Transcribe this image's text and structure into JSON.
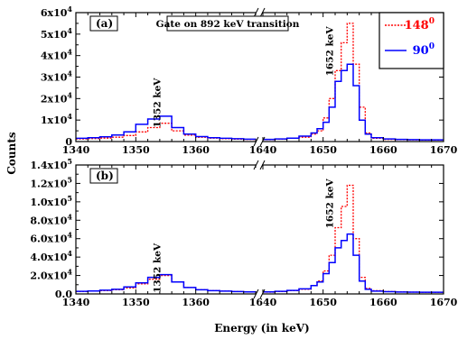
{
  "chart_data": [
    {
      "id": "a",
      "type": "line",
      "panel_label": "(a)",
      "title": "Gate on 892 keV transition",
      "ylabel": "Counts",
      "ylim": [
        0,
        60000
      ],
      "yticks": [
        {
          "value": 0,
          "label": "0"
        },
        {
          "value": 10000,
          "label": "1x10",
          "exp": "4"
        },
        {
          "value": 20000,
          "label": "2x10",
          "exp": "4"
        },
        {
          "value": 30000,
          "label": "3x10",
          "exp": "4"
        },
        {
          "value": 40000,
          "label": "4x10",
          "exp": "4"
        },
        {
          "value": 50000,
          "label": "5x10",
          "exp": "4"
        },
        {
          "value": 60000,
          "label": "6x10",
          "exp": "4"
        }
      ],
      "x_segments": [
        {
          "range": [
            1340,
            1370
          ],
          "ticks": [
            {
              "value": 1340,
              "label": "1340"
            },
            {
              "value": 1350,
              "label": "1350"
            },
            {
              "value": 1360,
              "label": "1360"
            }
          ]
        },
        {
          "range": [
            1640,
            1670
          ],
          "ticks": [
            {
              "value": 1640,
              "label": "1640"
            },
            {
              "value": 1650,
              "label": "1650"
            },
            {
              "value": 1660,
              "label": "1660"
            },
            {
              "value": 1670,
              "label": "1670"
            }
          ]
        }
      ],
      "annotations": [
        {
          "text": "1352 keV",
          "x": 1353.5,
          "y": 18000
        },
        {
          "text": "1652 keV",
          "x": 1651,
          "y": 42000
        }
      ],
      "legend": {
        "placement": "top-right",
        "entries": [
          {
            "name": "148",
            "sup": "0",
            "color": "#ff0000",
            "style": "dotted"
          },
          {
            "name": "90",
            "sup": "0",
            "color": "#0000ff",
            "style": "solid"
          }
        ]
      },
      "series": [
        {
          "name": "148",
          "color": "#ff0000",
          "style": "dotted",
          "segments": [
            {
              "x": [
                1340,
                1342,
                1344,
                1346,
                1348,
                1350,
                1352,
                1354,
                1356,
                1358,
                1360,
                1362,
                1364,
                1366,
                1368,
                1370
              ],
              "values": [
                1200,
                1400,
                1600,
                2000,
                2800,
                4500,
                6500,
                8500,
                5000,
                3000,
                2000,
                1600,
                1300,
                1100,
                1000,
                900
              ]
            },
            {
              "x": [
                1640,
                1642,
                1644,
                1646,
                1648,
                1649,
                1650,
                1651,
                1652,
                1653,
                1654,
                1655,
                1656,
                1657,
                1658,
                1660,
                1662,
                1664,
                1666,
                1668,
                1670
              ],
              "values": [
                900,
                1100,
                1500,
                2000,
                3500,
                5000,
                11000,
                20000,
                33000,
                46000,
                55000,
                36000,
                16000,
                4000,
                1500,
                1000,
                900,
                800,
                700,
                700,
                700
              ]
            }
          ]
        },
        {
          "name": "90",
          "color": "#0000ff",
          "style": "solid",
          "segments": [
            {
              "x": [
                1340,
                1342,
                1344,
                1346,
                1348,
                1350,
                1352,
                1354,
                1356,
                1358,
                1360,
                1362,
                1364,
                1366,
                1368,
                1370
              ],
              "values": [
                1500,
                1800,
                2200,
                3000,
                4500,
                8000,
                10500,
                11800,
                6500,
                3500,
                2300,
                1800,
                1500,
                1300,
                1100,
                1000
              ]
            },
            {
              "x": [
                1640,
                1642,
                1644,
                1646,
                1648,
                1649,
                1650,
                1651,
                1652,
                1653,
                1654,
                1655,
                1656,
                1657,
                1658,
                1660,
                1662,
                1664,
                1666,
                1668,
                1670
              ],
              "values": [
                1000,
                1200,
                1600,
                2500,
                4000,
                6000,
                9000,
                16000,
                28000,
                33000,
                36000,
                26000,
                10000,
                3500,
                1800,
                1200,
                1000,
                900,
                800,
                800,
                800
              ]
            }
          ]
        }
      ]
    },
    {
      "id": "b",
      "type": "line",
      "panel_label": "(b)",
      "ylim": [
        0,
        140000
      ],
      "yticks": [
        {
          "value": 0,
          "label": "0.0"
        },
        {
          "value": 20000,
          "label": "2.0x10",
          "exp": "4"
        },
        {
          "value": 40000,
          "label": "4.0x10",
          "exp": "4"
        },
        {
          "value": 60000,
          "label": "6.0x10",
          "exp": "4"
        },
        {
          "value": 80000,
          "label": "8.0x10",
          "exp": "4"
        },
        {
          "value": 100000,
          "label": "1.0x10",
          "exp": "5"
        },
        {
          "value": 120000,
          "label": "1.2x10",
          "exp": "5"
        },
        {
          "value": 140000,
          "label": "1.4x10",
          "exp": "5"
        }
      ],
      "xlabel": "Energy (in keV)",
      "x_segments": [
        {
          "range": [
            1340,
            1370
          ],
          "ticks": [
            {
              "value": 1340,
              "label": "1340"
            },
            {
              "value": 1350,
              "label": "1350"
            },
            {
              "value": 1360,
              "label": "1360"
            }
          ]
        },
        {
          "range": [
            1640,
            1670
          ],
          "ticks": [
            {
              "value": 1640,
              "label": "1640"
            },
            {
              "value": 1650,
              "label": "1650"
            },
            {
              "value": 1660,
              "label": "1660"
            },
            {
              "value": 1670,
              "label": "1670"
            }
          ]
        }
      ],
      "annotations": [
        {
          "text": "1352 keV",
          "x": 1353.5,
          "y": 28000
        },
        {
          "text": "1652 keV",
          "x": 1651,
          "y": 98000
        }
      ],
      "series": [
        {
          "name": "148",
          "color": "#ff0000",
          "style": "dotted",
          "segments": [
            {
              "x": [
                1340,
                1342,
                1344,
                1346,
                1348,
                1350,
                1352,
                1354,
                1356,
                1358,
                1360,
                1362,
                1364,
                1366,
                1368,
                1370
              ],
              "values": [
                2500,
                3000,
                3500,
                4500,
                6500,
                11000,
                16000,
                20000,
                13000,
                7000,
                4500,
                3500,
                3000,
                2500,
                2200,
                2000
              ]
            },
            {
              "x": [
                1640,
                1642,
                1644,
                1646,
                1648,
                1649,
                1650,
                1651,
                1652,
                1653,
                1654,
                1655,
                1656,
                1657,
                1658,
                1660,
                1662,
                1664,
                1666,
                1668,
                1670
              ],
              "values": [
                2000,
                2500,
                3500,
                5000,
                9000,
                14000,
                25000,
                42000,
                72000,
                95000,
                118000,
                60000,
                18000,
                6000,
                3500,
                2500,
                2200,
                2000,
                1800,
                1800,
                1800
              ]
            }
          ]
        },
        {
          "name": "90",
          "color": "#0000ff",
          "style": "solid",
          "segments": [
            {
              "x": [
                1340,
                1342,
                1344,
                1346,
                1348,
                1350,
                1352,
                1354,
                1356,
                1358,
                1360,
                1362,
                1364,
                1366,
                1368,
                1370
              ],
              "values": [
                2800,
                3200,
                4000,
                5000,
                7500,
                12000,
                18000,
                21000,
                13000,
                7000,
                4500,
                3500,
                3000,
                2500,
                2200,
                2000
              ]
            },
            {
              "x": [
                1640,
                1642,
                1644,
                1646,
                1648,
                1649,
                1650,
                1651,
                1652,
                1653,
                1654,
                1655,
                1656,
                1657,
                1658,
                1660,
                1662,
                1664,
                1666,
                1668,
                1670
              ],
              "values": [
                2200,
                2800,
                3800,
                5500,
                9000,
                13000,
                22000,
                34000,
                50000,
                58000,
                65000,
                42000,
                14000,
                5000,
                3000,
                2400,
                2100,
                2000,
                1900,
                1900,
                1900
              ]
            }
          ]
        }
      ]
    }
  ]
}
